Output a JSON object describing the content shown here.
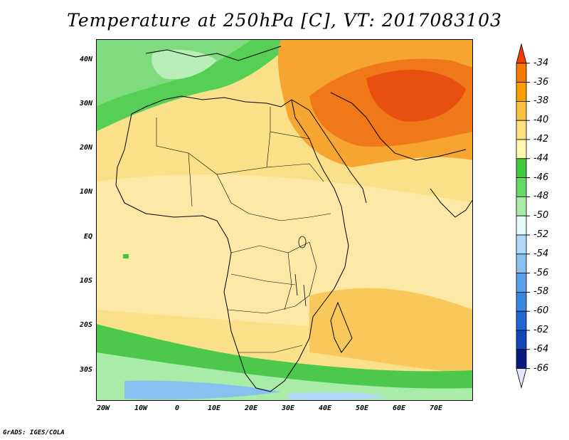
{
  "title": "Temperature at 250hPa [C], VT: 2017083103",
  "footer": "GrADS: IGES/COLA",
  "map": {
    "lat_labels": [
      "40N",
      "30N",
      "20N",
      "10N",
      "EQ",
      "10S",
      "20S",
      "30S"
    ],
    "lon_labels": [
      "20W",
      "10W",
      "0",
      "10E",
      "20E",
      "30E",
      "40E",
      "50E",
      "60E",
      "70E"
    ]
  },
  "colorbar": {
    "labels": [
      "-34",
      "-36",
      "-38",
      "-40",
      "-42",
      "-44",
      "-46",
      "-48",
      "-50",
      "-52",
      "-54",
      "-56",
      "-58",
      "-60",
      "-62",
      "-64",
      "-66"
    ],
    "colors": [
      "#f03c00",
      "#f57800",
      "#f5a000",
      "#f8c040",
      "#fbe080",
      "#fff7b0",
      "#3ec83e",
      "#66d866",
      "#a8eca8",
      "#e4fbf8",
      "#b0d8f8",
      "#88c0f0",
      "#5aa0e8",
      "#3a88e0",
      "#2068d0",
      "#1048b8",
      "#0a1a80",
      "#e6e6ff"
    ]
  }
}
